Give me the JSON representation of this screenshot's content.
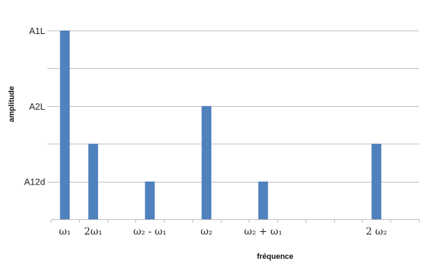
{
  "chart_data": {
    "type": "bar",
    "xlabel": "fréquence",
    "ylabel": "amplitude",
    "y_tick_labels": [
      "A12d",
      "",
      "A2L",
      "",
      "A1L"
    ],
    "grid": true,
    "legend": "none",
    "bar_color": "#4f81bd",
    "ylim": [
      0,
      5
    ],
    "x_positions": [
      "ω₁",
      "2ω₁",
      "",
      "ω₂ - ω₁",
      "",
      "ω₂",
      "",
      "ω₂ + ω₁",
      "",
      "",
      "",
      "2 ω₂",
      ""
    ],
    "categories": [
      "ω₁",
      "2ω₁",
      "ω₂ - ω₁",
      "ω₂",
      "ω₂ + ω₁",
      "2 ω₂"
    ],
    "values": [
      5,
      2,
      1,
      3,
      1,
      2
    ]
  }
}
